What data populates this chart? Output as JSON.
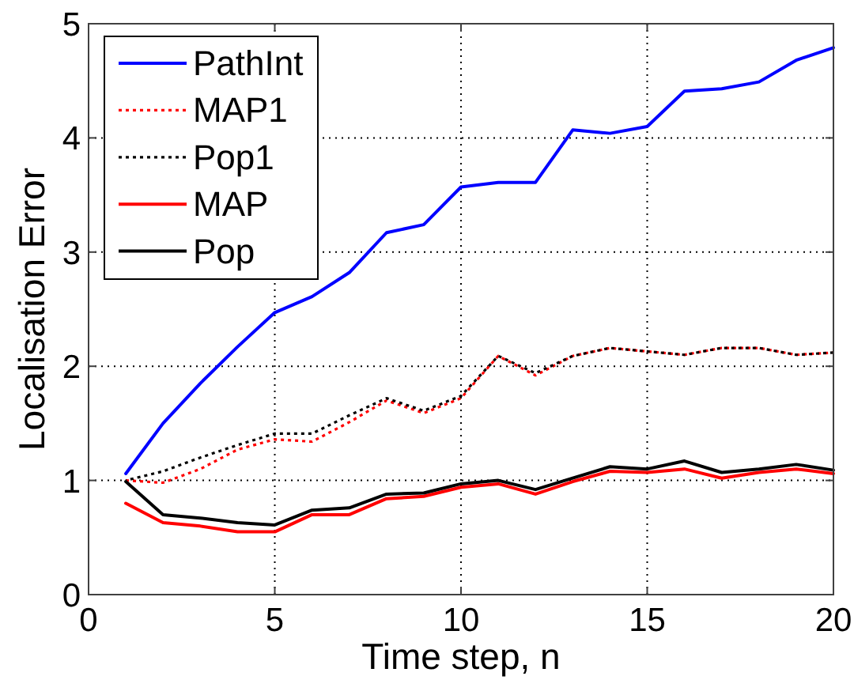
{
  "chart_data": {
    "type": "line",
    "xlabel": "Time step, n",
    "ylabel": "Localisation Error",
    "x": [
      1,
      2,
      3,
      4,
      5,
      6,
      7,
      8,
      9,
      10,
      11,
      12,
      13,
      14,
      15,
      16,
      17,
      18,
      19,
      20
    ],
    "series": [
      {
        "name": "PathInt",
        "color": "#0000ff",
        "values": [
          1.06,
          1.5,
          1.85,
          2.17,
          2.47,
          2.61,
          2.82,
          3.17,
          3.24,
          3.57,
          3.61,
          3.61,
          4.07,
          4.04,
          4.1,
          4.41,
          4.43,
          4.49,
          4.68,
          4.79
        ]
      },
      {
        "name": "MAP1",
        "color": "#ff0000",
        "line_style": "dotted",
        "values": [
          1.0,
          0.98,
          1.1,
          1.27,
          1.36,
          1.34,
          1.51,
          1.7,
          1.59,
          1.72,
          2.09,
          1.92,
          2.09,
          2.16,
          2.13,
          2.1,
          2.16,
          2.16,
          2.1,
          2.12
        ]
      },
      {
        "name": "Pop1",
        "color": "#000000",
        "line_style": "dotted",
        "values": [
          1.0,
          1.08,
          1.2,
          1.31,
          1.41,
          1.41,
          1.57,
          1.72,
          1.61,
          1.74,
          2.09,
          1.94,
          2.09,
          2.16,
          2.13,
          2.1,
          2.16,
          2.16,
          2.1,
          2.12
        ]
      },
      {
        "name": "MAP",
        "color": "#ff0000",
        "values": [
          0.8,
          0.63,
          0.6,
          0.55,
          0.55,
          0.7,
          0.7,
          0.84,
          0.86,
          0.94,
          0.97,
          0.88,
          0.99,
          1.08,
          1.07,
          1.1,
          1.02,
          1.07,
          1.1,
          1.06
        ]
      },
      {
        "name": "Pop",
        "color": "#000000",
        "values": [
          0.99,
          0.7,
          0.67,
          0.63,
          0.61,
          0.74,
          0.76,
          0.88,
          0.89,
          0.97,
          1.0,
          0.92,
          1.02,
          1.12,
          1.1,
          1.17,
          1.07,
          1.1,
          1.14,
          1.09
        ]
      }
    ],
    "xlim": [
      0,
      20
    ],
    "xticks": [
      0,
      5,
      10,
      15,
      20
    ],
    "ylim": [
      0,
      5
    ],
    "yticks": [
      0,
      1,
      2,
      3,
      4,
      5
    ],
    "grid": true,
    "legend": "top left",
    "line_style": "solid"
  }
}
